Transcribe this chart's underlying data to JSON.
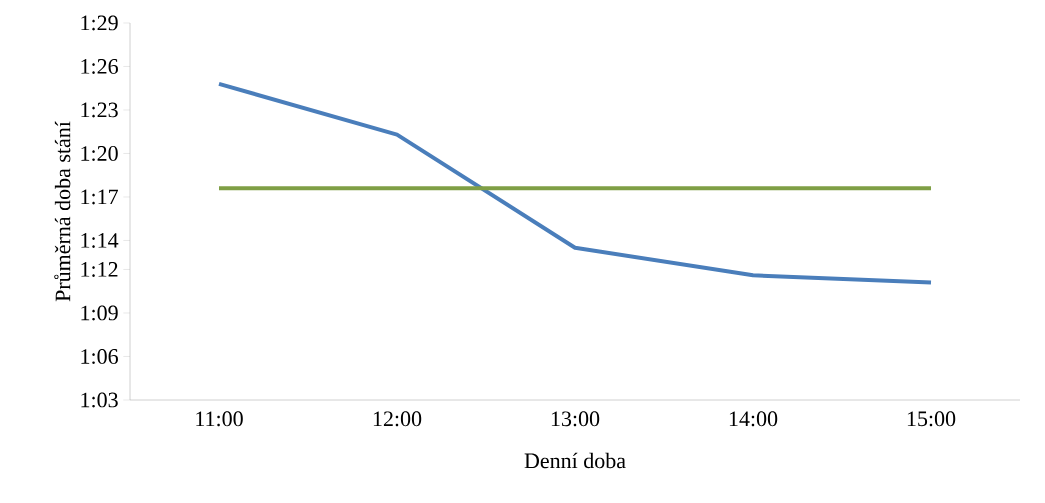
{
  "chart_data": {
    "type": "line",
    "xlabel": "Denní doba",
    "ylabel": "Průměrná doba stání",
    "categories": [
      "11:00",
      "12:00",
      "13:00",
      "14:00",
      "15:00"
    ],
    "series": [
      {
        "color": "#4a7ebb",
        "values": [
          84.8,
          81.3,
          73.5,
          71.6,
          71.1
        ]
      },
      {
        "color": "#7f9f45",
        "values": [
          77.6,
          77.6,
          77.6,
          77.6,
          77.6
        ]
      }
    ],
    "ylim": [
      63,
      89
    ],
    "yticks": [
      {
        "value": 63,
        "label": "1:03"
      },
      {
        "value": 66,
        "label": "1:06"
      },
      {
        "value": 69,
        "label": "1:09"
      },
      {
        "value": 72,
        "label": "1:12"
      },
      {
        "value": 74,
        "label": "1:14"
      },
      {
        "value": 77,
        "label": "1:17"
      },
      {
        "value": 80,
        "label": "1:20"
      },
      {
        "value": 83,
        "label": "1:23"
      },
      {
        "value": 86,
        "label": "1:26"
      },
      {
        "value": 89,
        "label": "1:29"
      }
    ],
    "marker": "none",
    "line_style": "solid"
  }
}
